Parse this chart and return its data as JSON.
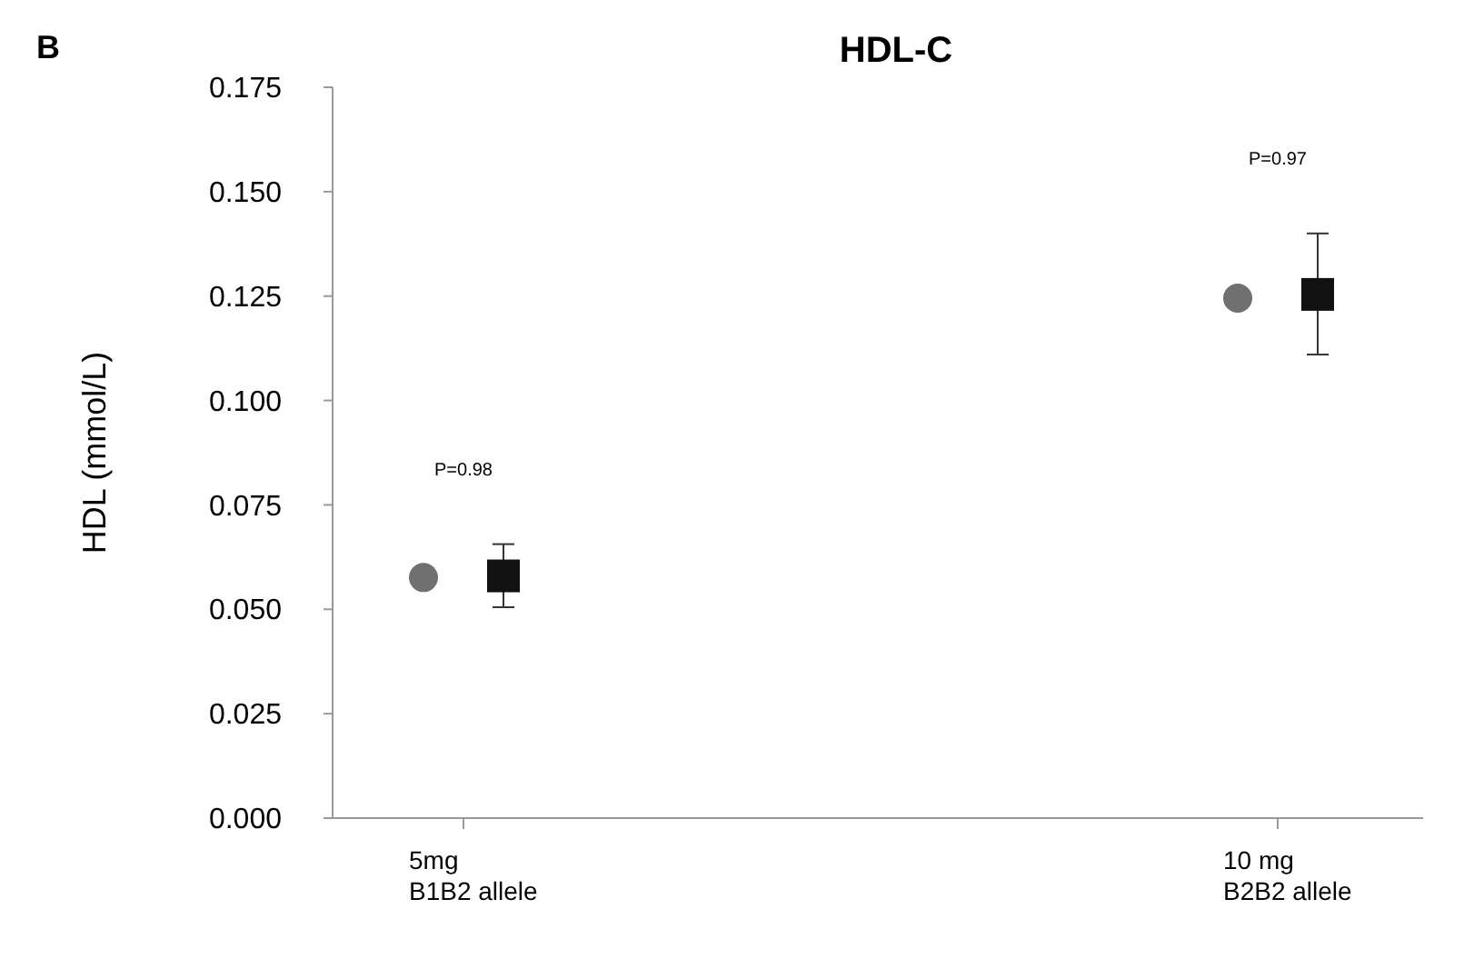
{
  "chart_data": {
    "type": "scatter",
    "title": "HDL-C",
    "ylabel": "HDL  (mmol/L)",
    "categories": [
      "5mg\nB1B2 allele",
      "10 mg\nB2B2 allele"
    ],
    "series": [
      {
        "color": "#707070",
        "marker": "circle",
        "values": [
          0.0576,
          0.1245
        ]
      },
      {
        "color": "#111111",
        "marker": "square",
        "values": [
          0.058,
          0.1254
        ],
        "errors": [
          [
            0.0505,
            0.0656
          ],
          [
            0.111,
            0.14
          ]
        ]
      }
    ],
    "ylim": [
      0,
      0.175
    ],
    "yticks": [
      {
        "value": 0,
        "label": "0.000"
      },
      {
        "value": 0.025,
        "label": "0.025"
      },
      {
        "value": 0.05,
        "label": "0.050"
      },
      {
        "value": 0.075,
        "label": "0.075"
      },
      {
        "value": 0.1,
        "label": "0.100"
      },
      {
        "value": 0.125,
        "label": "0.125"
      },
      {
        "value": 0.15,
        "label": "0.150"
      },
      {
        "value": 0.175,
        "label": "0.175"
      }
    ],
    "annotations": [
      "B",
      "P=0.98",
      "P=0.97"
    ],
    "grid": false
  }
}
